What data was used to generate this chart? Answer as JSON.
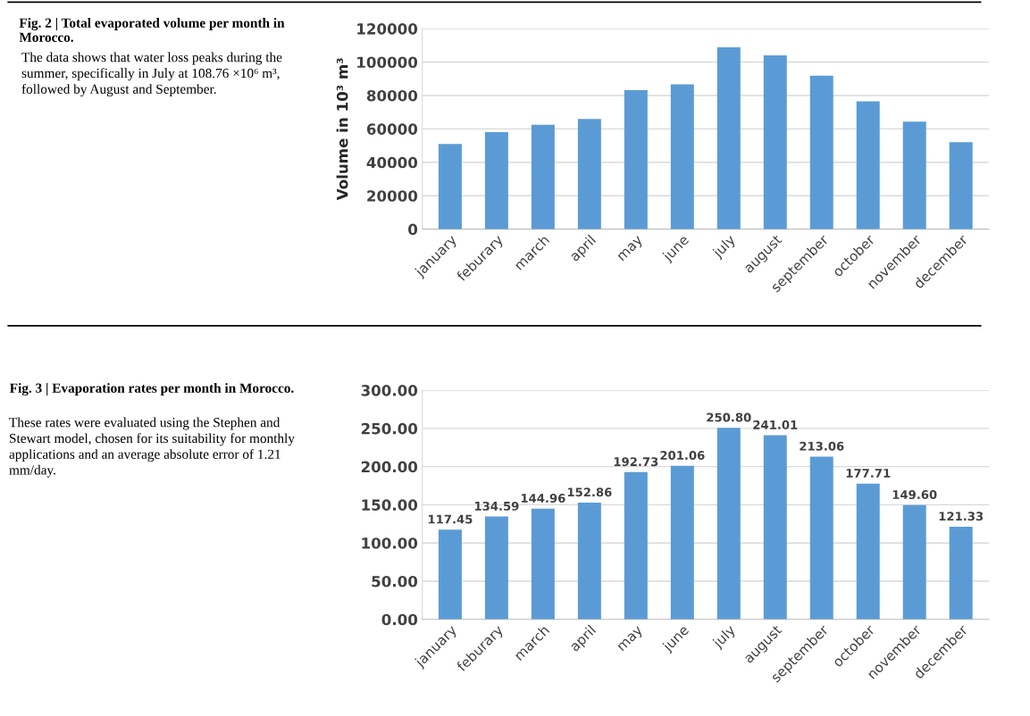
{
  "chart_data": [
    {
      "type": "bar",
      "title": "Fig. 2 | Total evaporated volume per month in Morocco.",
      "subtitle": "The data shows that water loss peaks during the summer, specifically in July at 108.76 ×10⁶ m³, followed by August and September.",
      "ylabel": "Volume in 10³ m³",
      "categories": [
        "january",
        "feburary",
        "march",
        "april",
        "may",
        "june",
        "july",
        "august",
        "september",
        "october",
        "november",
        "december"
      ],
      "values": [
        51000,
        58000,
        62400,
        65900,
        83200,
        86700,
        108800,
        104000,
        91800,
        76500,
        64300,
        52000
      ],
      "color": "#5b9bd5",
      "ylim": [
        0,
        120000
      ],
      "yticks": [
        0,
        20000,
        40000,
        60000,
        80000,
        100000,
        120000
      ],
      "grid": "y"
    },
    {
      "type": "bar",
      "title": "Fig. 3 | Evaporation rates per month in Morocco.",
      "subtitle": "These rates were evaluated using the Stephen and Stewart model, chosen for its suitability for monthly applications and an average absolute error of 1.21 mm/day.",
      "categories": [
        "january",
        "feburary",
        "march",
        "april",
        "may",
        "june",
        "july",
        "august",
        "september",
        "october",
        "november",
        "december"
      ],
      "values": [
        117.45,
        134.59,
        144.96,
        152.86,
        192.73,
        201.06,
        250.8,
        241.01,
        213.06,
        177.71,
        149.6,
        121.33
      ],
      "value_labels": [
        "117.45",
        "134.59",
        "144.96",
        "152.86",
        "192.73",
        "201.06",
        "250.80",
        "241.01",
        "213.06",
        "177.71",
        "149.60",
        "121.33"
      ],
      "color": "#5b9bd5",
      "ylim": [
        0,
        300
      ],
      "yticks": [
        {
          "value": 0,
          "label": "0.00"
        },
        {
          "value": 50,
          "label": "50.00"
        },
        {
          "value": 100,
          "label": "100.00"
        },
        {
          "value": 150,
          "label": "150.00"
        },
        {
          "value": 200,
          "label": "200.00"
        },
        {
          "value": 250,
          "label": "250.00"
        },
        {
          "value": 300,
          "label": "300.00"
        }
      ],
      "grid": "y"
    }
  ]
}
